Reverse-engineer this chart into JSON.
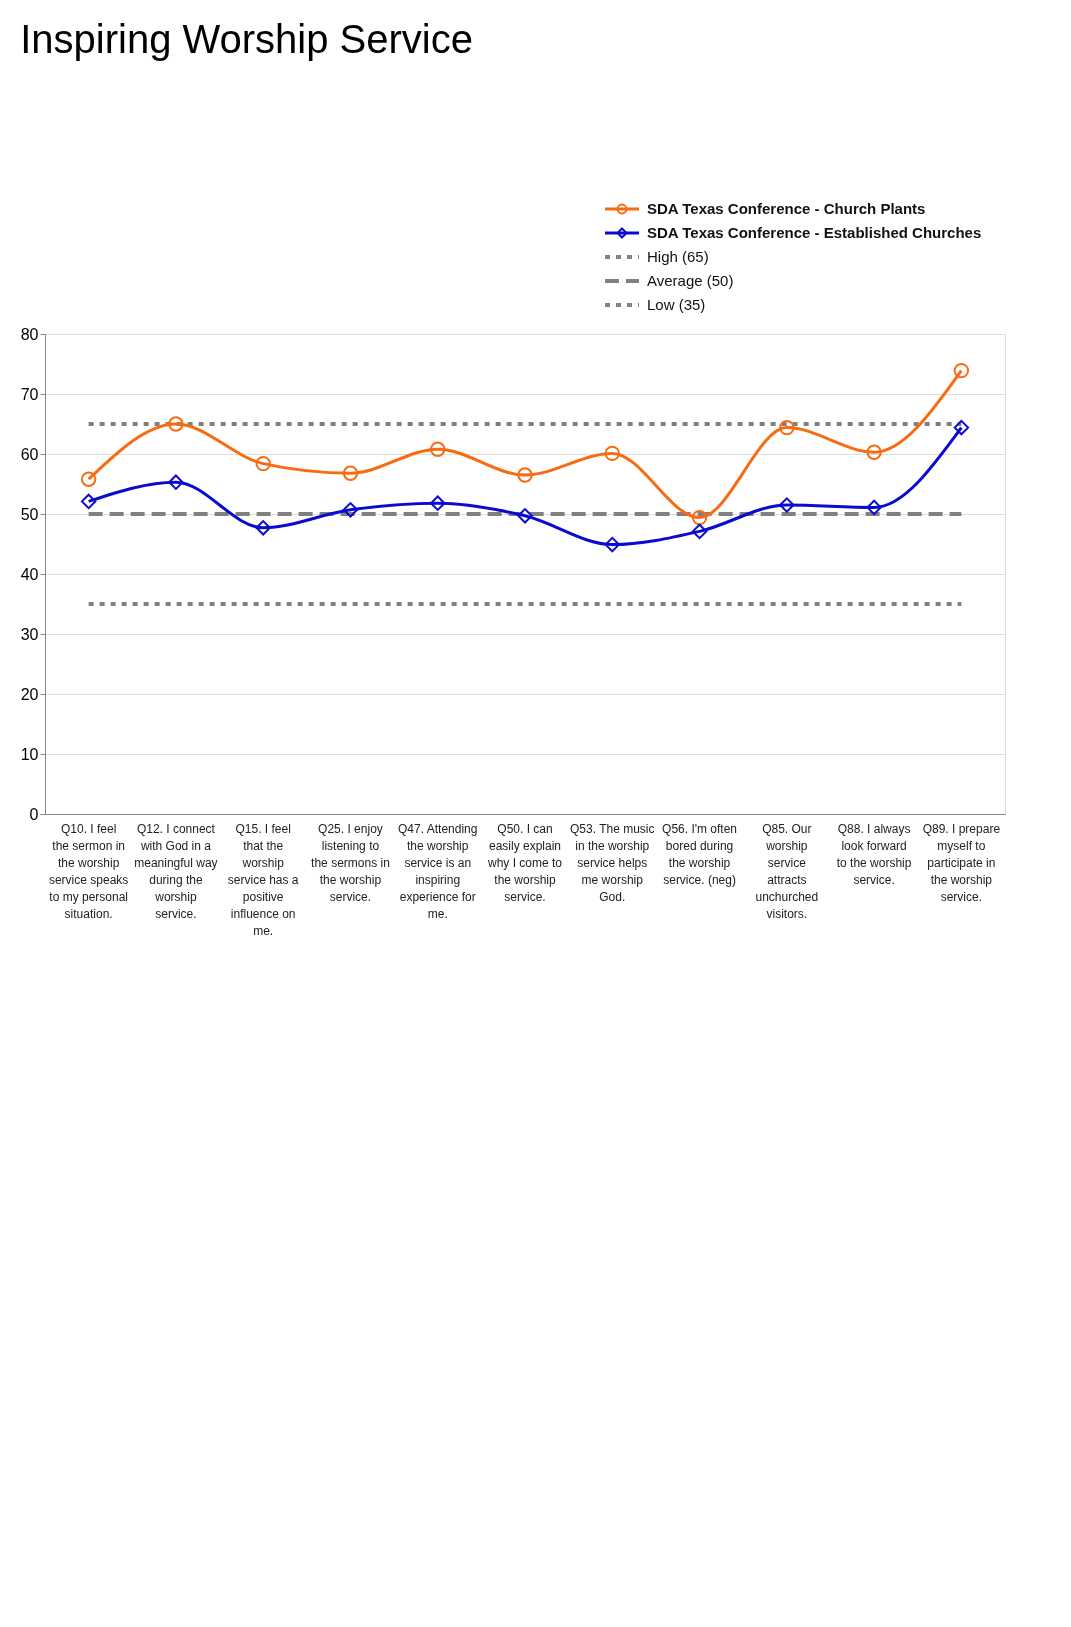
{
  "chart_data": {
    "type": "line",
    "title": "Inspiring Worship Service",
    "categories": [
      "Q10. I feel the sermon in the worship service speaks to my personal situation.",
      "Q12. I connect with God in a meaningful way during the worship service.",
      "Q15. I feel that the worship service has a positive influence on me.",
      "Q25. I enjoy listening to the sermons in the worship service.",
      "Q47. Attending the worship service is an inspiring experience for me.",
      "Q50. I can easily explain why I come to the worship service.",
      "Q53. The music in the worship service helps me worship God.",
      "Q56. I'm often bored during the worship service. (neg)",
      "Q85. Our worship service attracts unchurched visitors.",
      "Q88. I always look forward to the worship service.",
      "Q89. I prepare myself to participate in the worship service."
    ],
    "series": [
      {
        "name": "SDA Texas Conference - Church Plants",
        "color": "#f86b12",
        "marker": "circle",
        "values": [
          55.8,
          65.0,
          58.4,
          56.8,
          60.8,
          56.5,
          60.1,
          49.4,
          64.4,
          60.3,
          73.9
        ]
      },
      {
        "name": "SDA Texas Conference - Established Churches",
        "color": "#0a0ad0",
        "marker": "diamond",
        "values": [
          52.1,
          55.3,
          47.7,
          50.7,
          51.8,
          49.7,
          44.9,
          47.1,
          51.5,
          51.1,
          64.4
        ]
      }
    ],
    "ref_lines": [
      {
        "axis": "y",
        "value": 65,
        "label": "High (65)",
        "color": "#808080",
        "line_style": "dotted"
      },
      {
        "axis": "y",
        "value": 50,
        "label": "Average (50)",
        "color": "#808080",
        "line_style": "dashed"
      },
      {
        "axis": "y",
        "value": 35,
        "label": "Low (35)",
        "color": "#808080",
        "line_style": "dotted"
      }
    ],
    "ylim": [
      0,
      80
    ],
    "yticks": [
      0,
      10,
      20,
      30,
      40,
      50,
      60,
      70,
      80
    ],
    "grid": "y",
    "legend": "top right",
    "line_style": "solid"
  }
}
